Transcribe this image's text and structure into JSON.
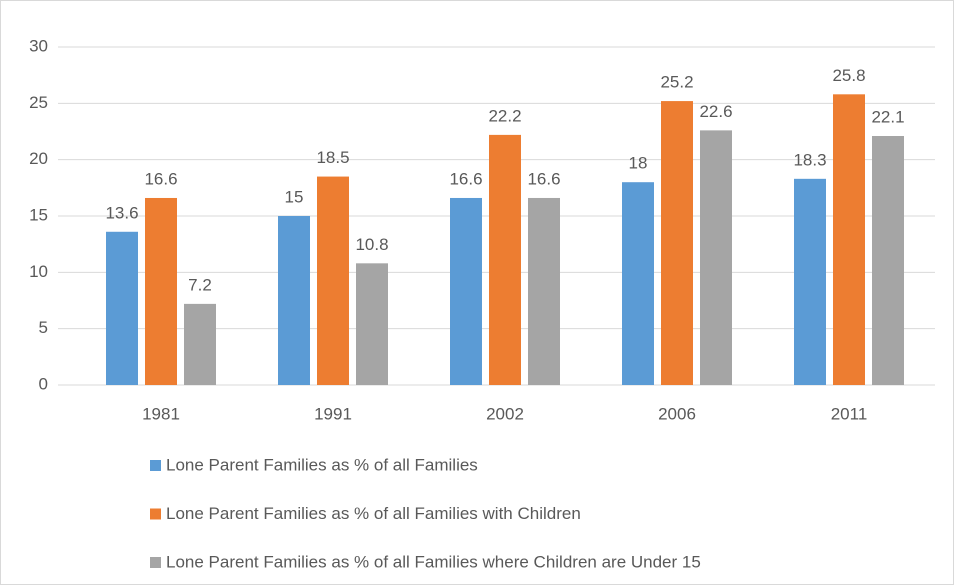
{
  "chart_data": {
    "type": "bar",
    "categories": [
      "1981",
      "1991",
      "2002",
      "2006",
      "2011"
    ],
    "series": [
      {
        "name": "Lone Parent Families as % of all Families",
        "color": "#5b9bd5",
        "values": [
          13.6,
          15,
          16.6,
          18,
          18.3
        ]
      },
      {
        "name": "Lone Parent Families as % of all Families with Children",
        "color": "#ed7d31",
        "values": [
          16.6,
          18.5,
          22.2,
          25.2,
          25.8
        ]
      },
      {
        "name": "Lone Parent Families as % of all Families where Children are Under 15",
        "color": "#a5a5a5",
        "values": [
          7.2,
          10.8,
          16.6,
          22.6,
          22.1
        ]
      }
    ],
    "ylim": [
      0,
      30
    ],
    "yticks": [
      0,
      5,
      10,
      15,
      20,
      25,
      30
    ],
    "grid": true,
    "legend": "bottom"
  }
}
